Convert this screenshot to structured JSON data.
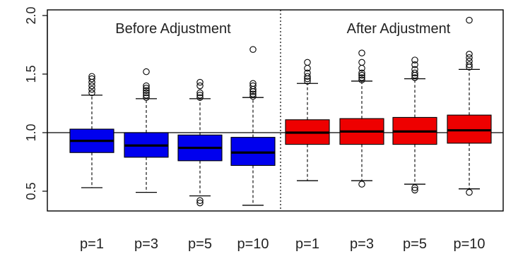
{
  "chart_data": {
    "type": "box",
    "ylim": [
      0.3,
      2.0
    ],
    "yticks": [
      "0.5",
      "1.0",
      "1.5",
      "2.0"
    ],
    "reference_line": 1.0,
    "categories": [
      "p=1",
      "p=3",
      "p=5",
      "p=10",
      "p=1",
      "p=3",
      "p=5",
      "p=10"
    ],
    "panels": [
      {
        "title": "Before Adjustment",
        "color": "#0000ee",
        "boxes": [
          {
            "label": "p=1",
            "whisker_low": 0.53,
            "q1": 0.83,
            "median": 0.93,
            "q3": 1.03,
            "whisker_high": 1.32,
            "outliers": [
              1.34,
              1.37,
              1.4,
              1.43,
              1.46,
              1.48
            ]
          },
          {
            "label": "p=3",
            "whisker_low": 0.49,
            "q1": 0.79,
            "median": 0.89,
            "q3": 1.0,
            "whisker_high": 1.29,
            "outliers": [
              1.3,
              1.32,
              1.34,
              1.36,
              1.38,
              1.4,
              1.52
            ]
          },
          {
            "label": "p=5",
            "whisker_low": 0.46,
            "q1": 0.76,
            "median": 0.87,
            "q3": 0.98,
            "whisker_high": 1.29,
            "outliers": [
              0.4,
              0.42,
              1.3,
              1.32,
              1.34,
              1.4,
              1.43
            ]
          },
          {
            "label": "p=10",
            "whisker_low": 0.38,
            "q1": 0.72,
            "median": 0.83,
            "q3": 0.96,
            "whisker_high": 1.3,
            "outliers": [
              1.31,
              1.33,
              1.35,
              1.37,
              1.4,
              1.42,
              1.71
            ]
          }
        ]
      },
      {
        "title": "After Adjustment",
        "color": "#ee0000",
        "boxes": [
          {
            "label": "p=1",
            "whisker_low": 0.59,
            "q1": 0.9,
            "median": 1.0,
            "q3": 1.11,
            "whisker_high": 1.42,
            "outliers": [
              1.44,
              1.46,
              1.48,
              1.51,
              1.55,
              1.6
            ]
          },
          {
            "label": "p=3",
            "whisker_low": 0.59,
            "q1": 0.9,
            "median": 1.01,
            "q3": 1.12,
            "whisker_high": 1.44,
            "outliers": [
              0.56,
              1.45,
              1.47,
              1.49,
              1.51,
              1.55,
              1.6,
              1.68
            ]
          },
          {
            "label": "p=5",
            "whisker_low": 0.56,
            "q1": 0.9,
            "median": 1.01,
            "q3": 1.13,
            "whisker_high": 1.46,
            "outliers": [
              0.51,
              0.53,
              1.47,
              1.49,
              1.51,
              1.54,
              1.58,
              1.62
            ]
          },
          {
            "label": "p=10",
            "whisker_low": 0.52,
            "q1": 0.91,
            "median": 1.02,
            "q3": 1.15,
            "whisker_high": 1.54,
            "outliers": [
              0.49,
              1.56,
              1.58,
              1.61,
              1.64,
              1.67,
              1.96
            ]
          }
        ]
      }
    ]
  }
}
